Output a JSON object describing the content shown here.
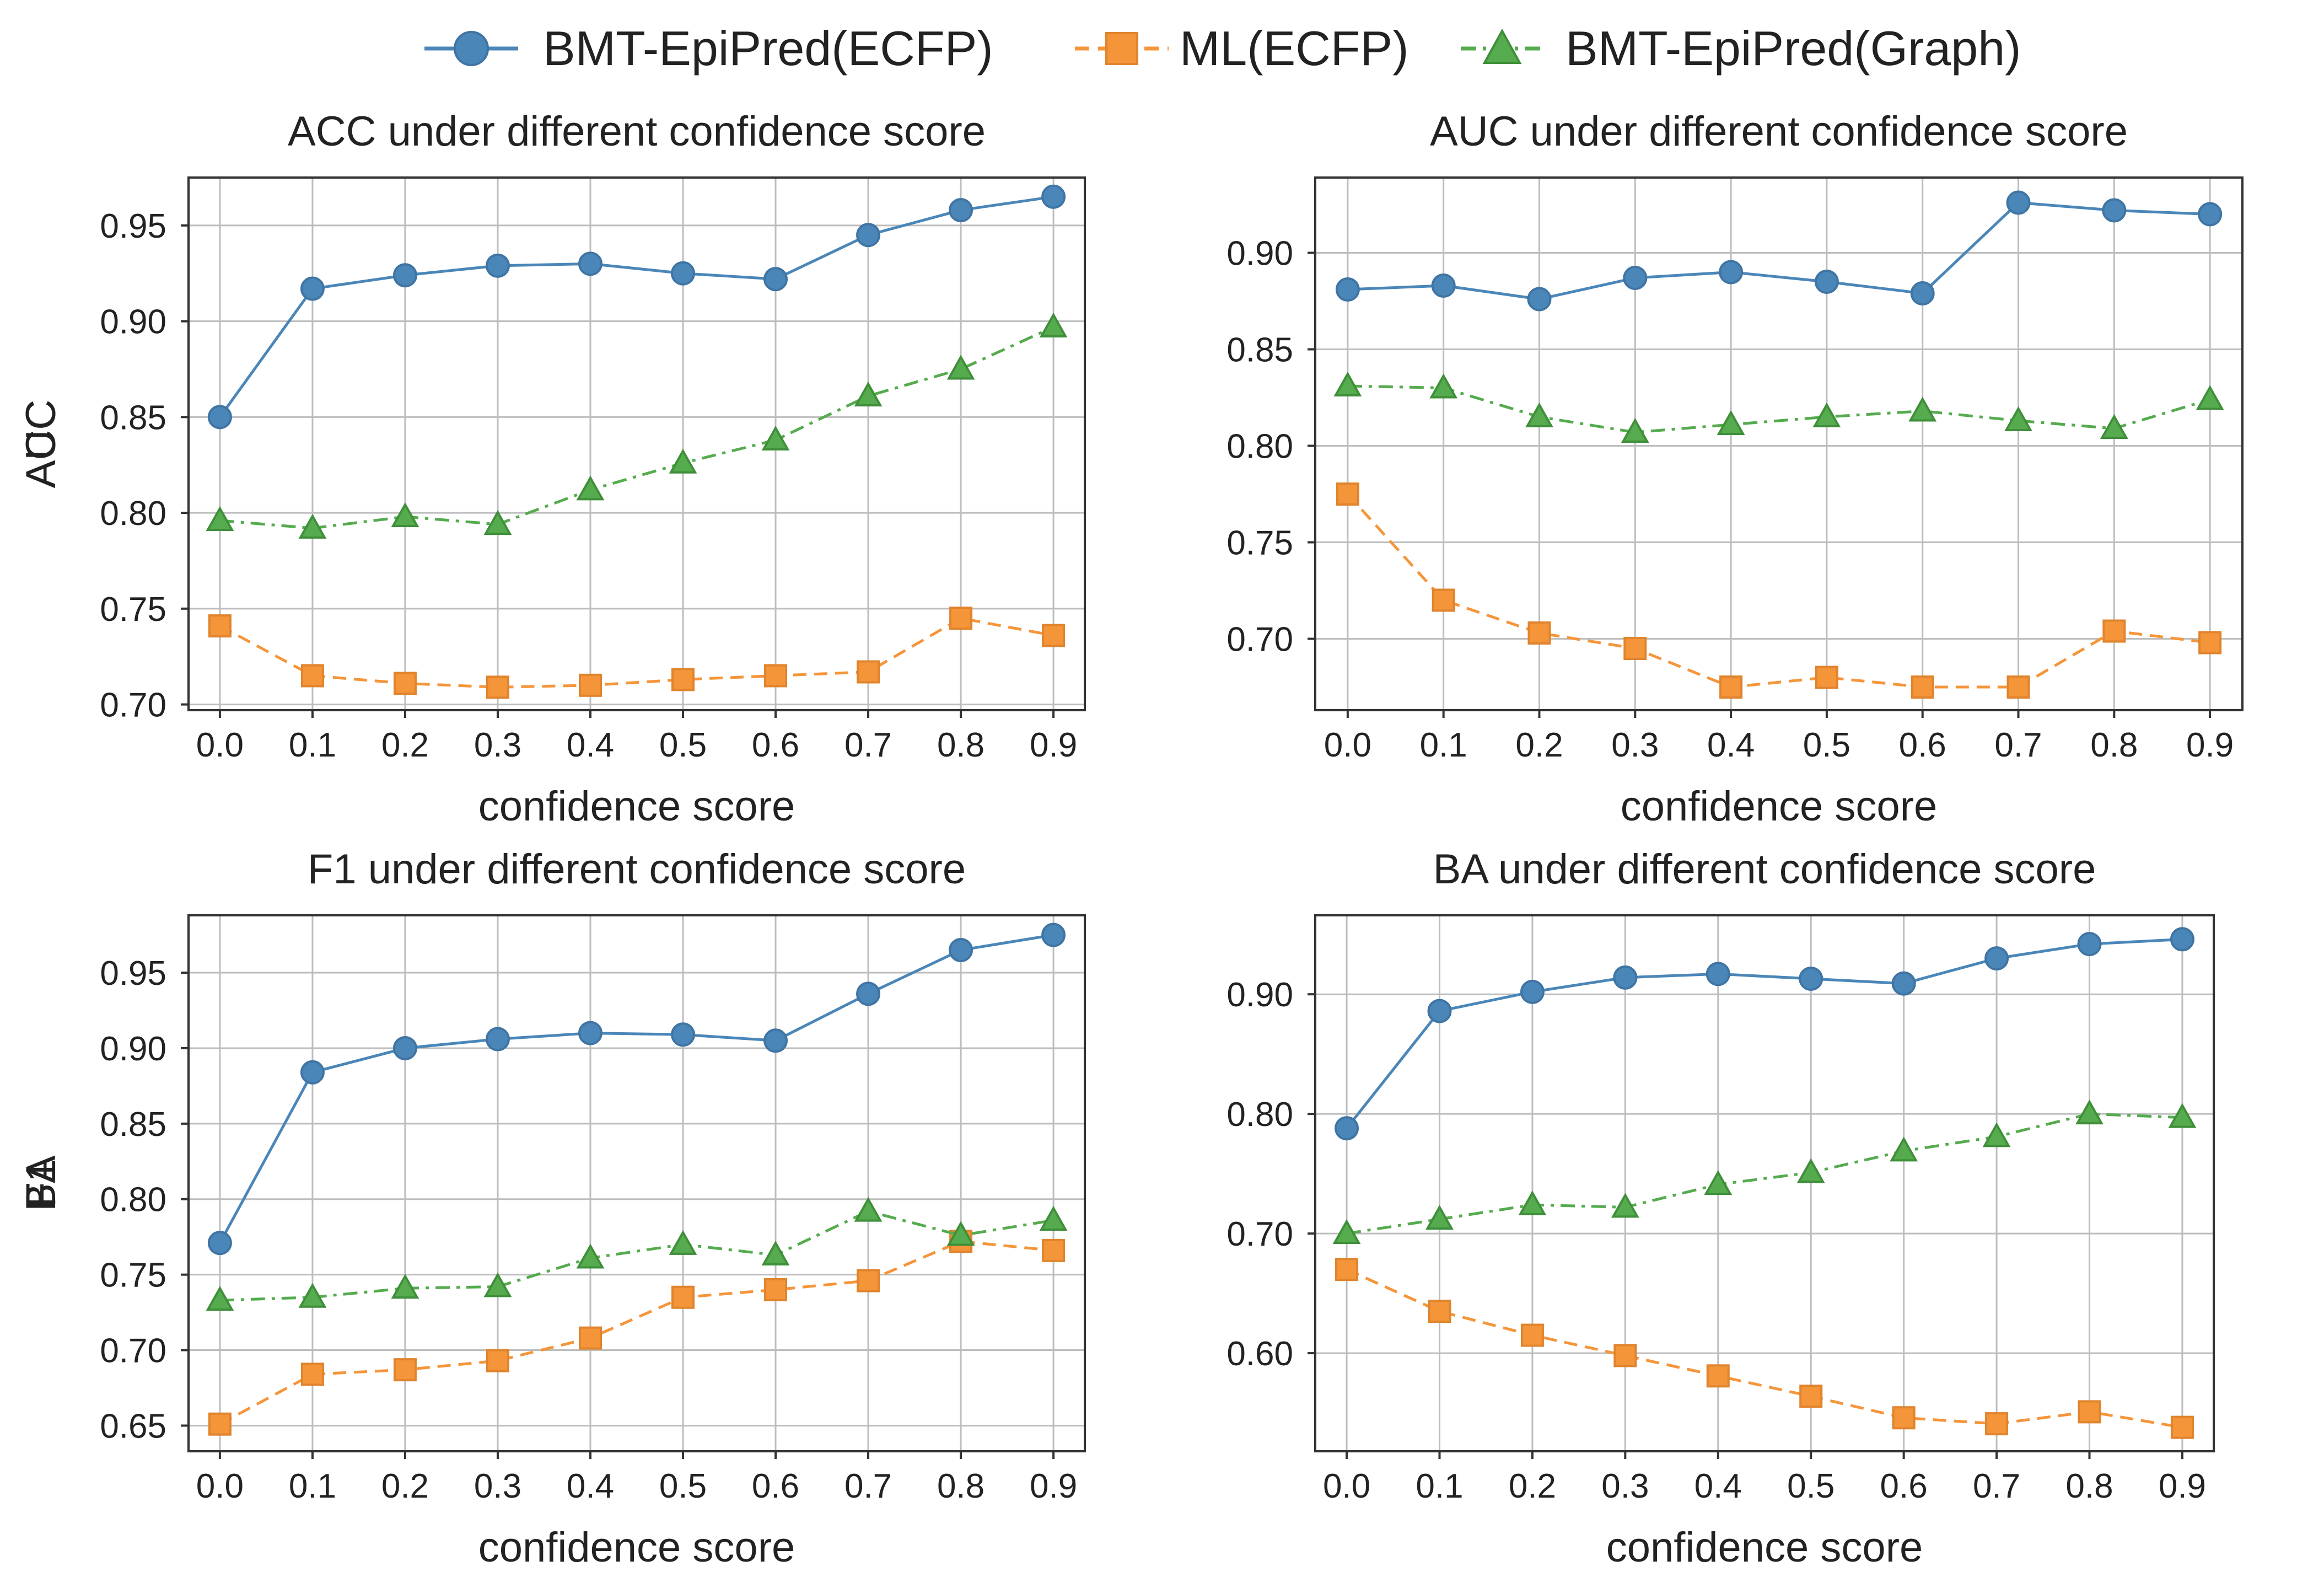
{
  "legend": [
    {
      "label": "BMT-EpiPred(ECFP)",
      "color": "#4a86b8",
      "marker": "circle",
      "dash": "solid"
    },
    {
      "label": "ML(ECFP)",
      "color": "#f5953a",
      "marker": "square",
      "dash": "dashed"
    },
    {
      "label": "BMT-EpiPred(Graph)",
      "color": "#55ab4e",
      "marker": "triangle",
      "dash": "dashdot"
    }
  ],
  "chart_data": [
    {
      "type": "line",
      "title": "ACC under different confidence score",
      "xlabel": "confidence score",
      "ylabel": "ACC",
      "x": [
        0.0,
        0.1,
        0.2,
        0.3,
        0.4,
        0.5,
        0.6,
        0.7,
        0.8,
        0.9
      ],
      "x_tick_labels": [
        "0.0",
        "0.1",
        "0.2",
        "0.3",
        "0.4",
        "0.5",
        "0.6",
        "0.7",
        "0.8",
        "0.9"
      ],
      "ylim": [
        0.697,
        0.975
      ],
      "y_ticks": [
        0.7,
        0.75,
        0.8,
        0.85,
        0.9,
        0.95
      ],
      "y_tick_labels": [
        "0.70",
        "0.75",
        "0.80",
        "0.85",
        "0.90",
        "0.95"
      ],
      "grid": true,
      "series": [
        {
          "name": "BMT-EpiPred(ECFP)",
          "values": [
            0.85,
            0.917,
            0.924,
            0.929,
            0.93,
            0.925,
            0.922,
            0.945,
            0.958,
            0.965
          ]
        },
        {
          "name": "ML(ECFP)",
          "values": [
            0.741,
            0.715,
            0.711,
            0.709,
            0.71,
            0.713,
            0.715,
            0.717,
            0.745,
            0.736
          ]
        },
        {
          "name": "BMT-EpiPred(Graph)",
          "values": [
            0.796,
            0.792,
            0.798,
            0.794,
            0.812,
            0.826,
            0.838,
            0.861,
            0.875,
            0.897
          ]
        }
      ]
    },
    {
      "type": "line",
      "title": "AUC under different confidence score",
      "xlabel": "confidence score",
      "ylabel": "AUC",
      "x": [
        0.0,
        0.1,
        0.2,
        0.3,
        0.4,
        0.5,
        0.6,
        0.7,
        0.8,
        0.9
      ],
      "x_tick_labels": [
        "0.0",
        "0.1",
        "0.2",
        "0.3",
        "0.4",
        "0.5",
        "0.6",
        "0.7",
        "0.8",
        "0.9"
      ],
      "ylim": [
        0.663,
        0.939
      ],
      "y_ticks": [
        0.7,
        0.75,
        0.8,
        0.85,
        0.9
      ],
      "y_tick_labels": [
        "0.70",
        "0.75",
        "0.80",
        "0.85",
        "0.90"
      ],
      "grid": true,
      "series": [
        {
          "name": "BMT-EpiPred(ECFP)",
          "values": [
            0.881,
            0.883,
            0.876,
            0.887,
            0.89,
            0.885,
            0.879,
            0.926,
            0.922,
            0.92
          ]
        },
        {
          "name": "ML(ECFP)",
          "values": [
            0.775,
            0.72,
            0.703,
            0.695,
            0.675,
            0.68,
            0.675,
            0.675,
            0.704,
            0.698
          ]
        },
        {
          "name": "BMT-EpiPred(Graph)",
          "values": [
            0.831,
            0.83,
            0.815,
            0.807,
            0.811,
            0.815,
            0.818,
            0.813,
            0.809,
            0.824
          ]
        }
      ]
    },
    {
      "type": "line",
      "title": "F1 under different confidence score",
      "xlabel": "confidence score",
      "ylabel": "F1",
      "x": [
        0.0,
        0.1,
        0.2,
        0.3,
        0.4,
        0.5,
        0.6,
        0.7,
        0.8,
        0.9
      ],
      "x_tick_labels": [
        "0.0",
        "0.1",
        "0.2",
        "0.3",
        "0.4",
        "0.5",
        "0.6",
        "0.7",
        "0.8",
        "0.9"
      ],
      "ylim": [
        0.633,
        0.988
      ],
      "y_ticks": [
        0.65,
        0.7,
        0.75,
        0.8,
        0.85,
        0.9,
        0.95
      ],
      "y_tick_labels": [
        "0.65",
        "0.70",
        "0.75",
        "0.80",
        "0.85",
        "0.90",
        "0.95"
      ],
      "grid": true,
      "series": [
        {
          "name": "BMT-EpiPred(ECFP)",
          "values": [
            0.771,
            0.884,
            0.9,
            0.906,
            0.91,
            0.909,
            0.905,
            0.936,
            0.965,
            0.975
          ]
        },
        {
          "name": "ML(ECFP)",
          "values": [
            0.651,
            0.684,
            0.687,
            0.693,
            0.708,
            0.735,
            0.74,
            0.746,
            0.772,
            0.766
          ]
        },
        {
          "name": "BMT-EpiPred(Graph)",
          "values": [
            0.733,
            0.735,
            0.741,
            0.742,
            0.761,
            0.77,
            0.763,
            0.792,
            0.776,
            0.786
          ]
        }
      ]
    },
    {
      "type": "line",
      "title": "BA under different confidence score",
      "xlabel": "confidence score",
      "ylabel": "BA",
      "x": [
        0.0,
        0.1,
        0.2,
        0.3,
        0.4,
        0.5,
        0.6,
        0.7,
        0.8,
        0.9
      ],
      "x_tick_labels": [
        "0.0",
        "0.1",
        "0.2",
        "0.3",
        "0.4",
        "0.5",
        "0.6",
        "0.7",
        "0.8",
        "0.9"
      ],
      "ylim": [
        0.518,
        0.966
      ],
      "y_ticks": [
        0.6,
        0.7,
        0.8,
        0.9
      ],
      "y_tick_labels": [
        "0.60",
        "0.70",
        "0.80",
        "0.90"
      ],
      "grid": true,
      "series": [
        {
          "name": "BMT-EpiPred(ECFP)",
          "values": [
            0.788,
            0.886,
            0.902,
            0.914,
            0.917,
            0.913,
            0.909,
            0.93,
            0.942,
            0.946
          ]
        },
        {
          "name": "ML(ECFP)",
          "values": [
            0.67,
            0.635,
            0.615,
            0.598,
            0.581,
            0.564,
            0.546,
            0.541,
            0.551,
            0.538
          ]
        },
        {
          "name": "BMT-EpiPred(Graph)",
          "values": [
            0.7,
            0.712,
            0.724,
            0.722,
            0.741,
            0.751,
            0.769,
            0.781,
            0.8,
            0.797
          ]
        }
      ]
    }
  ]
}
